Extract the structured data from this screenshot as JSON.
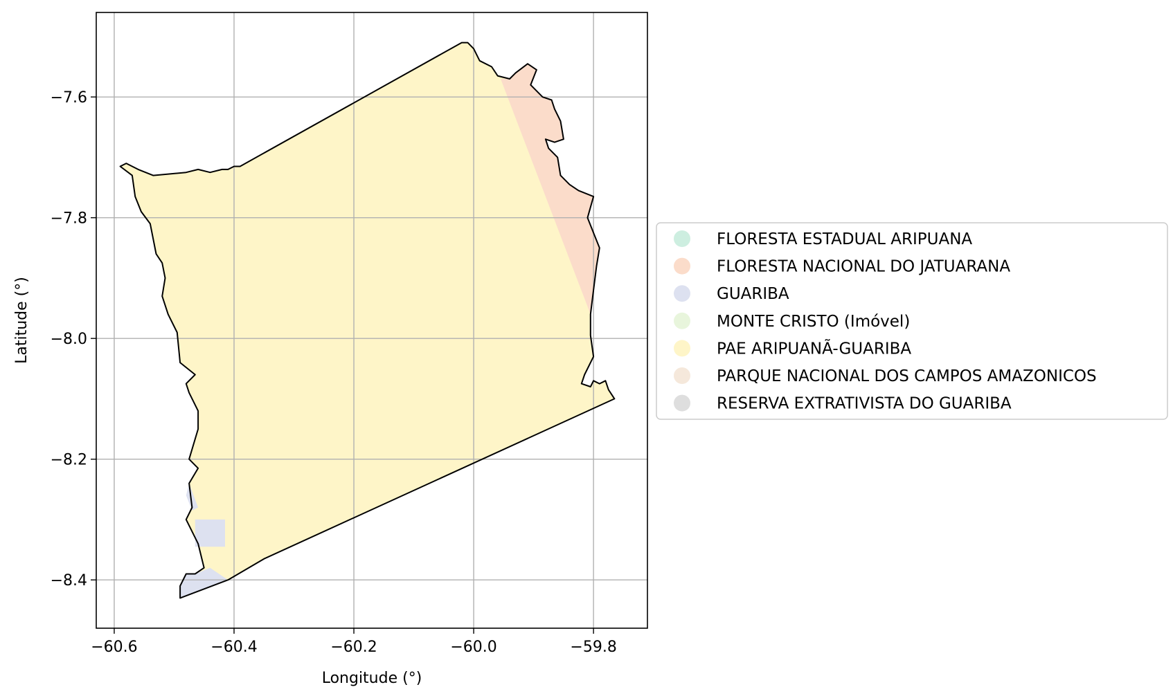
{
  "chart_data": {
    "type": "choropleth-map",
    "xlabel": "Longitude (°)",
    "ylabel": "Latitude (°)",
    "xlim": [
      -60.63,
      -59.71
    ],
    "ylim": [
      -8.48,
      -7.46
    ],
    "grid": true,
    "x_ticks": [
      {
        "value": -60.6,
        "label": "−60.6"
      },
      {
        "value": -60.4,
        "label": "−60.4"
      },
      {
        "value": -60.2,
        "label": "−60.2"
      },
      {
        "value": -60.0,
        "label": "−60.0"
      },
      {
        "value": -59.8,
        "label": "−59.8"
      }
    ],
    "y_ticks": [
      {
        "value": -7.6,
        "label": "−7.6"
      },
      {
        "value": -7.8,
        "label": "−7.8"
      },
      {
        "value": -8.0,
        "label": "−8.0"
      },
      {
        "value": -8.2,
        "label": "−8.2"
      },
      {
        "value": -8.4,
        "label": "−8.4"
      }
    ],
    "legend_position": "right",
    "legend": [
      {
        "label": "FLORESTA ESTADUAL ARIPUANA",
        "color": "#cdeee0"
      },
      {
        "label": "FLORESTA NACIONAL DO JATUARANA",
        "color": "#fbdcca"
      },
      {
        "label": "GUARIBA",
        "color": "#dde1f0"
      },
      {
        "label": "MONTE CRISTO (Imóvel)",
        "color": "#e8f5dc"
      },
      {
        "label": "PAE ARIPUANÃ-GUARIBA",
        "color": "#fef5c8"
      },
      {
        "label": "PARQUE NACIONAL DOS CAMPOS AMAZONICOS",
        "color": "#f5e8db"
      },
      {
        "label": "RESERVA EXTRATIVISTA DO GUARIBA",
        "color": "#dedede"
      }
    ],
    "regions": [
      {
        "name": "PAE ARIPUANÃ-GUARIBA",
        "color": "#fef5c8",
        "outline": [
          [
            -60.02,
            -7.51
          ],
          [
            -60.01,
            -7.51
          ],
          [
            -60.0,
            -7.52
          ],
          [
            -59.99,
            -7.54
          ],
          [
            -59.97,
            -7.55
          ],
          [
            -59.96,
            -7.565
          ],
          [
            -59.94,
            -7.57
          ],
          [
            -59.93,
            -7.56
          ],
          [
            -59.91,
            -7.545
          ],
          [
            -59.895,
            -7.555
          ],
          [
            -59.905,
            -7.58
          ],
          [
            -59.885,
            -7.6
          ],
          [
            -59.87,
            -7.605
          ],
          [
            -59.865,
            -7.62
          ],
          [
            -59.855,
            -7.64
          ],
          [
            -59.85,
            -7.67
          ],
          [
            -59.865,
            -7.675
          ],
          [
            -59.88,
            -7.67
          ],
          [
            -59.875,
            -7.685
          ],
          [
            -59.86,
            -7.7
          ],
          [
            -59.855,
            -7.73
          ],
          [
            -59.84,
            -7.745
          ],
          [
            -59.825,
            -7.755
          ],
          [
            -59.8,
            -7.765
          ],
          [
            -59.81,
            -7.8
          ],
          [
            -59.8,
            -7.825
          ],
          [
            -59.79,
            -7.85
          ],
          [
            -59.795,
            -7.88
          ],
          [
            -59.8,
            -7.92
          ],
          [
            -59.805,
            -7.96
          ],
          [
            -59.805,
            -7.995
          ],
          [
            -59.8,
            -8.03
          ],
          [
            -59.815,
            -8.06
          ],
          [
            -59.82,
            -8.075
          ],
          [
            -59.805,
            -8.08
          ],
          [
            -59.8,
            -8.07
          ],
          [
            -59.79,
            -8.075
          ],
          [
            -59.78,
            -8.07
          ],
          [
            -59.775,
            -8.085
          ],
          [
            -59.765,
            -8.1
          ],
          [
            -60.35,
            -8.365
          ],
          [
            -60.41,
            -8.4
          ],
          [
            -60.49,
            -8.43
          ],
          [
            -60.49,
            -8.41
          ],
          [
            -60.48,
            -8.39
          ],
          [
            -60.465,
            -8.39
          ],
          [
            -60.45,
            -8.38
          ],
          [
            -60.455,
            -8.36
          ],
          [
            -60.46,
            -8.34
          ],
          [
            -60.48,
            -8.3
          ],
          [
            -60.47,
            -8.28
          ],
          [
            -60.475,
            -8.24
          ],
          [
            -60.46,
            -8.215
          ],
          [
            -60.475,
            -8.2
          ],
          [
            -60.46,
            -8.15
          ],
          [
            -60.46,
            -8.12
          ],
          [
            -60.475,
            -8.09
          ],
          [
            -60.48,
            -8.075
          ],
          [
            -60.465,
            -8.06
          ],
          [
            -60.49,
            -8.04
          ],
          [
            -60.495,
            -7.99
          ],
          [
            -60.51,
            -7.96
          ],
          [
            -60.52,
            -7.93
          ],
          [
            -60.515,
            -7.9
          ],
          [
            -60.52,
            -7.875
          ],
          [
            -60.53,
            -7.86
          ],
          [
            -60.54,
            -7.81
          ],
          [
            -60.555,
            -7.79
          ],
          [
            -60.565,
            -7.765
          ],
          [
            -60.57,
            -7.73
          ],
          [
            -60.59,
            -7.715
          ],
          [
            -60.58,
            -7.71
          ],
          [
            -60.56,
            -7.72
          ],
          [
            -60.535,
            -7.73
          ],
          [
            -60.48,
            -7.725
          ],
          [
            -60.46,
            -7.72
          ],
          [
            -60.44,
            -7.725
          ],
          [
            -60.42,
            -7.72
          ],
          [
            -60.41,
            -7.72
          ],
          [
            -60.4,
            -7.715
          ],
          [
            -60.39,
            -7.715
          ]
        ]
      },
      {
        "name": "FLORESTA NACIONAL DO JATUARANA",
        "color": "#fbdcca",
        "outline": [
          [
            -59.955,
            -7.57
          ],
          [
            -59.94,
            -7.57
          ],
          [
            -59.93,
            -7.56
          ],
          [
            -59.91,
            -7.545
          ],
          [
            -59.895,
            -7.555
          ],
          [
            -59.905,
            -7.58
          ],
          [
            -59.885,
            -7.6
          ],
          [
            -59.87,
            -7.605
          ],
          [
            -59.865,
            -7.62
          ],
          [
            -59.855,
            -7.64
          ],
          [
            -59.85,
            -7.67
          ],
          [
            -59.865,
            -7.675
          ],
          [
            -59.88,
            -7.67
          ],
          [
            -59.875,
            -7.685
          ],
          [
            -59.86,
            -7.7
          ],
          [
            -59.855,
            -7.73
          ],
          [
            -59.84,
            -7.745
          ],
          [
            -59.825,
            -7.755
          ],
          [
            -59.8,
            -7.765
          ],
          [
            -59.81,
            -7.8
          ],
          [
            -59.8,
            -7.825
          ],
          [
            -59.79,
            -7.85
          ],
          [
            -59.795,
            -7.88
          ],
          [
            -59.8,
            -7.92
          ],
          [
            -59.805,
            -7.96
          ]
        ]
      },
      {
        "name": "GUARIBA",
        "color": "#dde1f0",
        "parts": [
          [
            [
              -60.475,
              -8.24
            ],
            [
              -60.46,
              -8.28
            ],
            [
              -60.47,
              -8.285
            ],
            [
              -60.48,
              -8.26
            ]
          ],
          [
            [
              -60.465,
              -8.3
            ],
            [
              -60.415,
              -8.3
            ],
            [
              -60.415,
              -8.345
            ],
            [
              -60.465,
              -8.345
            ]
          ],
          [
            [
              -60.49,
              -8.43
            ],
            [
              -60.41,
              -8.4
            ],
            [
              -60.44,
              -8.38
            ],
            [
              -60.465,
              -8.39
            ],
            [
              -60.48,
              -8.39
            ],
            [
              -60.49,
              -8.41
            ]
          ]
        ]
      }
    ]
  }
}
